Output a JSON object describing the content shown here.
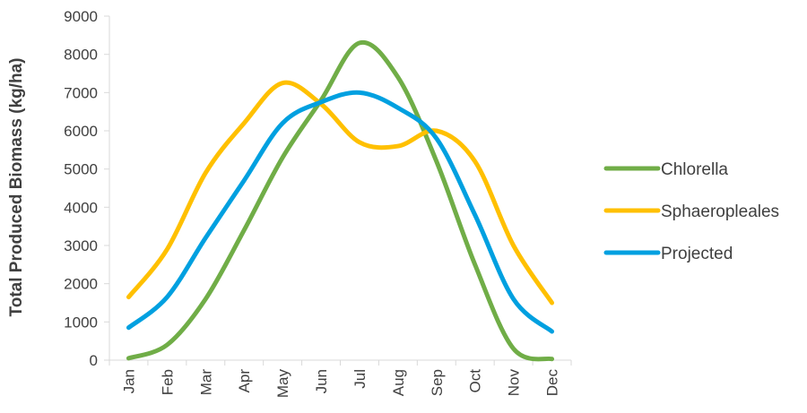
{
  "chart_data": {
    "type": "line",
    "title": "",
    "xlabel": "",
    "ylabel": "Total Produced Biomass (kg/ha)",
    "ylim": [
      0,
      9000
    ],
    "yticks": [
      0,
      1000,
      2000,
      3000,
      4000,
      5000,
      6000,
      7000,
      8000,
      9000
    ],
    "grid": false,
    "legend_position": "right",
    "categories": [
      "Jan",
      "Feb",
      "Mar",
      "Apr",
      "May",
      "Jun",
      "Jul",
      "Aug",
      "Sep",
      "Oct",
      "Nov",
      "Dec"
    ],
    "series": [
      {
        "name": "Chlorella",
        "color": "#70ad47",
        "values": [
          50,
          400,
          1600,
          3400,
          5300,
          6800,
          8300,
          7400,
          5200,
          2500,
          300,
          30
        ]
      },
      {
        "name": "Sphaeropleales",
        "color": "#ffc000",
        "values": [
          1650,
          2900,
          4900,
          6200,
          7250,
          6700,
          5700,
          5600,
          6000,
          5200,
          3000,
          1500
        ]
      },
      {
        "name": "Projected",
        "color": "#00a0e0",
        "values": [
          850,
          1650,
          3200,
          4700,
          6200,
          6750,
          7000,
          6600,
          5800,
          3800,
          1600,
          750
        ]
      }
    ]
  }
}
